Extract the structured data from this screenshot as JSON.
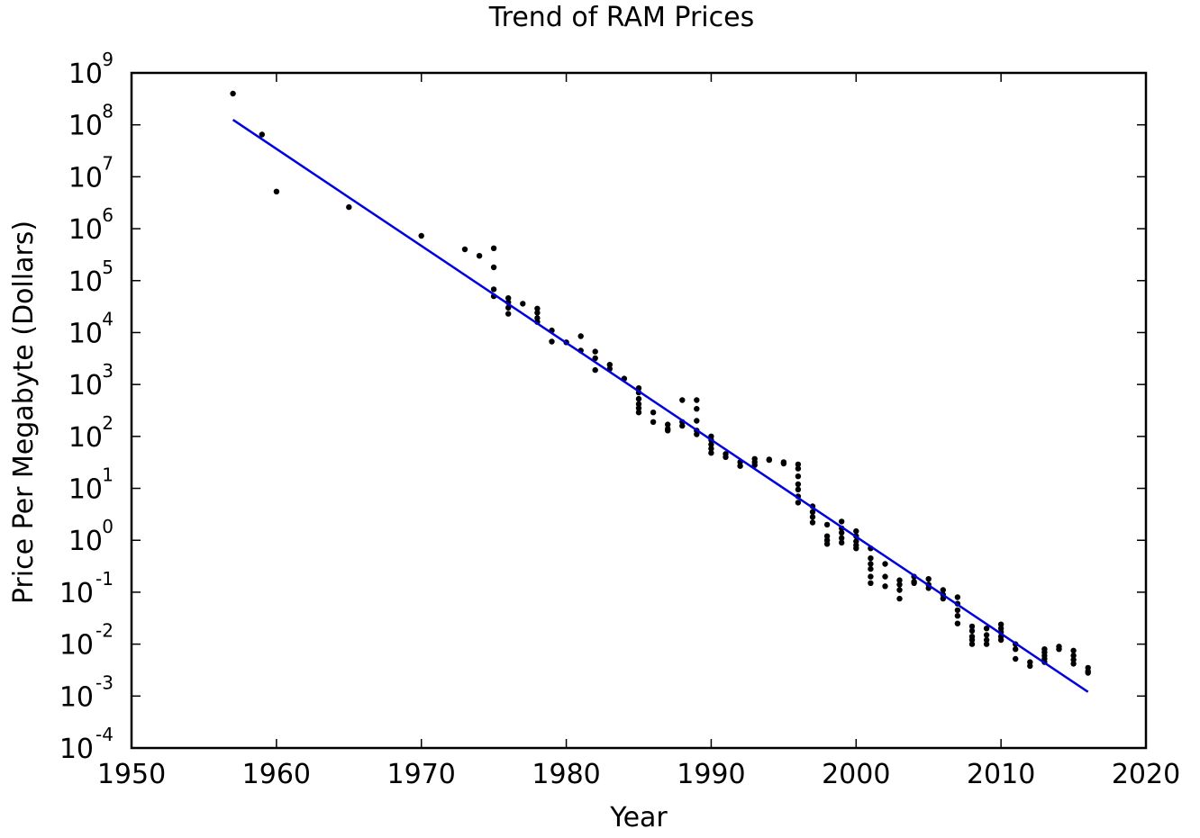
{
  "chart_data": {
    "type": "scatter",
    "title": "Trend of RAM Prices",
    "xlabel": "Year",
    "ylabel": "Price Per Megabyte (Dollars)",
    "xlim": [
      1950,
      2020
    ],
    "ylim": [
      0.0001,
      1000000000
    ],
    "yscale": "log",
    "grid": false,
    "x_ticks": [
      "1950",
      "1960",
      "1970",
      "1980",
      "1990",
      "2000",
      "2010",
      "2020"
    ],
    "y_ticks": [
      {
        "base": "10",
        "exp": "-4"
      },
      {
        "base": "10",
        "exp": "-3"
      },
      {
        "base": "10",
        "exp": "-2"
      },
      {
        "base": "10",
        "exp": "-1"
      },
      {
        "base": "10",
        "exp": "0"
      },
      {
        "base": "10",
        "exp": "1"
      },
      {
        "base": "10",
        "exp": "2"
      },
      {
        "base": "10",
        "exp": "3"
      },
      {
        "base": "10",
        "exp": "4"
      },
      {
        "base": "10",
        "exp": "5"
      },
      {
        "base": "10",
        "exp": "6"
      },
      {
        "base": "10",
        "exp": "7"
      },
      {
        "base": "10",
        "exp": "8"
      },
      {
        "base": "10",
        "exp": "9"
      }
    ],
    "series": [
      {
        "kind": "scatter",
        "color": "#000000",
        "points": [
          [
            1957,
            400000000
          ],
          [
            1959,
            65000000
          ],
          [
            1960,
            5200000
          ],
          [
            1965,
            2600000
          ],
          [
            1970,
            730000
          ],
          [
            1973,
            400000
          ],
          [
            1974,
            300000
          ],
          [
            1975,
            420000
          ],
          [
            1975,
            180000
          ],
          [
            1975,
            68000
          ],
          [
            1975,
            50000
          ],
          [
            1976,
            46000
          ],
          [
            1976,
            38000
          ],
          [
            1976,
            30000
          ],
          [
            1976,
            23000
          ],
          [
            1977,
            36000
          ],
          [
            1978,
            29000
          ],
          [
            1978,
            24000
          ],
          [
            1978,
            19000
          ],
          [
            1978,
            16000
          ],
          [
            1979,
            11000
          ],
          [
            1979,
            6700
          ],
          [
            1980,
            6500
          ],
          [
            1981,
            8500
          ],
          [
            1981,
            4500
          ],
          [
            1982,
            4300
          ],
          [
            1982,
            3200
          ],
          [
            1982,
            1900
          ],
          [
            1983,
            2400
          ],
          [
            1983,
            2000
          ],
          [
            1984,
            1300
          ],
          [
            1985,
            850
          ],
          [
            1985,
            700
          ],
          [
            1985,
            530
          ],
          [
            1985,
            420
          ],
          [
            1985,
            350
          ],
          [
            1985,
            290
          ],
          [
            1986,
            290
          ],
          [
            1986,
            190
          ],
          [
            1987,
            170
          ],
          [
            1987,
            140
          ],
          [
            1987,
            130
          ],
          [
            1988,
            500
          ],
          [
            1988,
            190
          ],
          [
            1988,
            160
          ],
          [
            1989,
            500
          ],
          [
            1989,
            340
          ],
          [
            1989,
            200
          ],
          [
            1989,
            130
          ],
          [
            1989,
            110
          ],
          [
            1990,
            100
          ],
          [
            1990,
            85
          ],
          [
            1990,
            70
          ],
          [
            1990,
            58
          ],
          [
            1990,
            48
          ],
          [
            1991,
            46
          ],
          [
            1991,
            40
          ],
          [
            1992,
            32
          ],
          [
            1992,
            27
          ],
          [
            1993,
            37
          ],
          [
            1993,
            32
          ],
          [
            1993,
            28
          ],
          [
            1994,
            36
          ],
          [
            1994,
            35
          ],
          [
            1995,
            32
          ],
          [
            1995,
            30
          ],
          [
            1996,
            29
          ],
          [
            1996,
            24
          ],
          [
            1996,
            17
          ],
          [
            1996,
            12
          ],
          [
            1996,
            9.5
          ],
          [
            1996,
            7
          ],
          [
            1996,
            5.3
          ],
          [
            1997,
            4.5
          ],
          [
            1997,
            3.5
          ],
          [
            1997,
            2.8
          ],
          [
            1997,
            2.2
          ],
          [
            1998,
            2.0
          ],
          [
            1998,
            1.2
          ],
          [
            1998,
            1.0
          ],
          [
            1998,
            0.85
          ],
          [
            1999,
            2.3
          ],
          [
            1999,
            1.7
          ],
          [
            1999,
            1.4
          ],
          [
            1999,
            1.1
          ],
          [
            1999,
            0.9
          ],
          [
            2000,
            1.5
          ],
          [
            2000,
            1.2
          ],
          [
            2000,
            0.95
          ],
          [
            2000,
            0.8
          ],
          [
            2000,
            0.7
          ],
          [
            2001,
            0.7
          ],
          [
            2001,
            0.45
          ],
          [
            2001,
            0.35
          ],
          [
            2001,
            0.28
          ],
          [
            2001,
            0.2
          ],
          [
            2001,
            0.15
          ],
          [
            2002,
            0.35
          ],
          [
            2002,
            0.2
          ],
          [
            2002,
            0.13
          ],
          [
            2003,
            0.17
          ],
          [
            2003,
            0.14
          ],
          [
            2003,
            0.11
          ],
          [
            2003,
            0.075
          ],
          [
            2004,
            0.2
          ],
          [
            2004,
            0.16
          ],
          [
            2004,
            0.15
          ],
          [
            2005,
            0.18
          ],
          [
            2005,
            0.14
          ],
          [
            2005,
            0.12
          ],
          [
            2006,
            0.11
          ],
          [
            2006,
            0.09
          ],
          [
            2006,
            0.075
          ],
          [
            2007,
            0.08
          ],
          [
            2007,
            0.06
          ],
          [
            2007,
            0.045
          ],
          [
            2007,
            0.035
          ],
          [
            2007,
            0.025
          ],
          [
            2008,
            0.022
          ],
          [
            2008,
            0.018
          ],
          [
            2008,
            0.014
          ],
          [
            2008,
            0.012
          ],
          [
            2008,
            0.01
          ],
          [
            2009,
            0.02
          ],
          [
            2009,
            0.015
          ],
          [
            2009,
            0.012
          ],
          [
            2009,
            0.01
          ],
          [
            2010,
            0.024
          ],
          [
            2010,
            0.02
          ],
          [
            2010,
            0.017
          ],
          [
            2010,
            0.014
          ],
          [
            2010,
            0.012
          ],
          [
            2011,
            0.01
          ],
          [
            2011,
            0.008
          ],
          [
            2011,
            0.0052
          ],
          [
            2012,
            0.0045
          ],
          [
            2012,
            0.0038
          ],
          [
            2013,
            0.008
          ],
          [
            2013,
            0.007
          ],
          [
            2013,
            0.006
          ],
          [
            2013,
            0.0052
          ],
          [
            2013,
            0.0045
          ],
          [
            2014,
            0.009
          ],
          [
            2014,
            0.008
          ],
          [
            2015,
            0.0075
          ],
          [
            2015,
            0.006
          ],
          [
            2015,
            0.005
          ],
          [
            2015,
            0.0042
          ],
          [
            2016,
            0.0035
          ],
          [
            2016,
            0.003
          ],
          [
            2016,
            0.0028
          ]
        ]
      },
      {
        "kind": "line",
        "color": "#0000e0",
        "points": [
          [
            1957,
            125000000
          ],
          [
            2016,
            0.0012
          ]
        ]
      }
    ]
  }
}
